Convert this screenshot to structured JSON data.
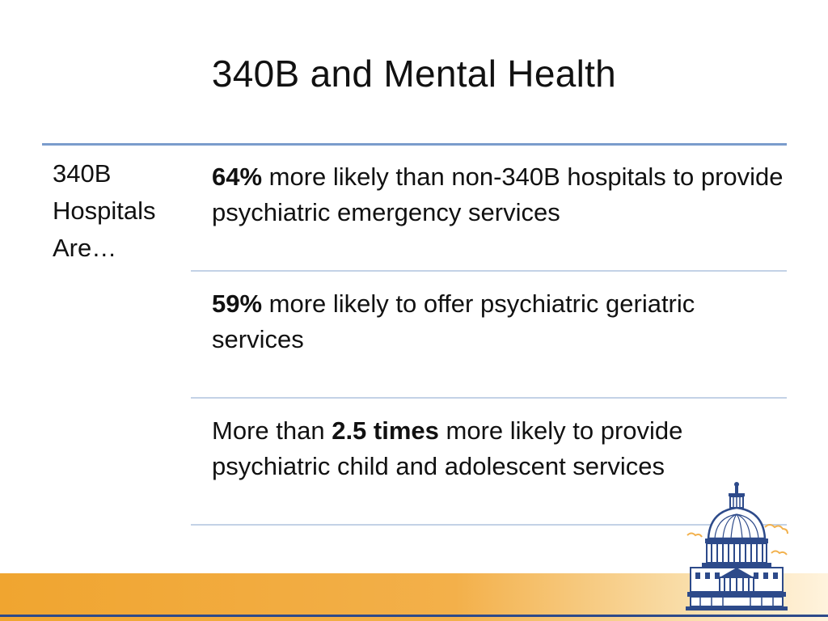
{
  "slide": {
    "title": "340B and Mental Health"
  },
  "left_label": {
    "line1": "340B",
    "line2": "Hospitals",
    "line3": "Are…"
  },
  "rows": [
    {
      "prefix": "",
      "bold": "64%",
      "rest": " more likely than non-340B hospitals to provide psychiatric emergency services"
    },
    {
      "prefix": "",
      "bold": "59%",
      "rest": " more likely to offer psychiatric geriatric services"
    },
    {
      "prefix": "More than ",
      "bold": "2.5 times",
      "rest": " more likely to provide psychiatric child and adolescent services"
    }
  ],
  "colors": {
    "accent_rule": "#7a9ccc",
    "divider": "#c3d2e6",
    "footer_orange": "#f0a530",
    "footer_line": "#2d4a8a",
    "capitol_blue": "#2d4a8a"
  },
  "icons": {
    "logo": "capitol-dome-icon"
  }
}
